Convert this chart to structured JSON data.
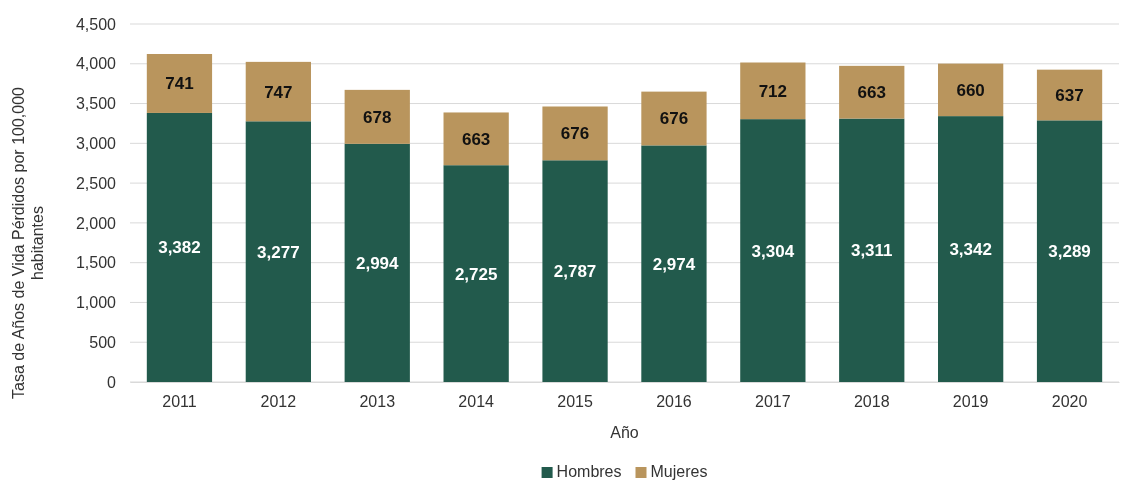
{
  "chart_data": {
    "type": "bar",
    "stacked": true,
    "xlabel": "Año",
    "ylabel": "Tasa de Años de Vida Pérdidos  por 100,000 habitantes",
    "categories": [
      "2011",
      "2012",
      "2013",
      "2014",
      "2015",
      "2016",
      "2017",
      "2018",
      "2019",
      "2020"
    ],
    "series": [
      {
        "name": "Hombres",
        "color": "#225a4c",
        "values": [
          3382,
          3277,
          2994,
          2725,
          2787,
          2974,
          3304,
          3311,
          3342,
          3289
        ],
        "value_labels": [
          "3,382",
          "3,277",
          "2,994",
          "2,725",
          "2,787",
          "2,974",
          "3,304",
          "3,311",
          "3,342",
          "3,289"
        ]
      },
      {
        "name": "Mujeres",
        "color": "#b9955d",
        "values": [
          741,
          747,
          678,
          663,
          676,
          676,
          712,
          663,
          660,
          637
        ],
        "value_labels": [
          "741",
          "747",
          "678",
          "663",
          "676",
          "676",
          "712",
          "663",
          "660",
          "637"
        ]
      }
    ],
    "ylim": [
      0,
      4500
    ],
    "yticks": [
      0,
      500,
      {
        "value": 1000,
        "label": "1,000"
      },
      {
        "value": 1500,
        "label": "1,500"
      },
      {
        "value": 2000,
        "label": "2,000"
      },
      {
        "value": 2500,
        "label": "2,500"
      },
      {
        "value": 3000,
        "label": "3,000"
      },
      {
        "value": 3500,
        "label": "3,500"
      },
      {
        "value": 4000,
        "label": "4,000"
      },
      {
        "value": 4500,
        "label": "4,500"
      }
    ],
    "grid": "y",
    "legend": "bottom"
  }
}
